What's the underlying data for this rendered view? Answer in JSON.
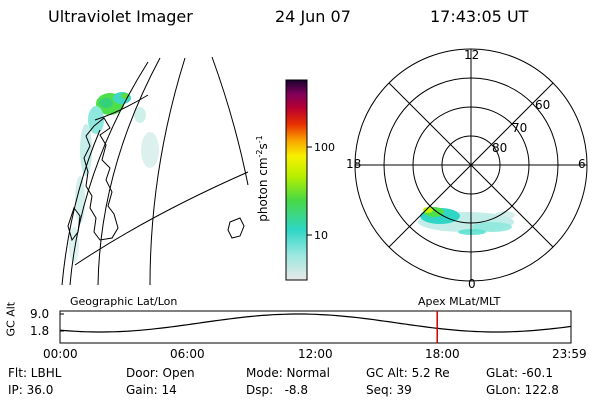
{
  "header": {
    "instrument": "Ultraviolet Imager",
    "date": "24 Jun 07",
    "time": "17:43:05 UT"
  },
  "colorbar": {
    "label": "photon cm",
    "label_sup1": "-2",
    "label_s": "s",
    "label_sup2": "-1",
    "ticks": [
      "100",
      "10"
    ],
    "scale": "log"
  },
  "polar_plot": {
    "mlt_labels": [
      "12",
      "18",
      "6",
      "0"
    ],
    "lat_labels": [
      "60",
      "70",
      "80"
    ]
  },
  "panels": {
    "left_caption": "Geographic Lat/Lon",
    "right_caption": "Apex MLat/MLT"
  },
  "timeline": {
    "ylabel": "GC Alt",
    "yticks": [
      "9.0",
      "1.8"
    ],
    "xticks": [
      "00:00",
      "06:00",
      "12:00",
      "18:00",
      "23:59"
    ],
    "marker_time": "17:43",
    "marker_color": "#d00000"
  },
  "info": {
    "filter": "Flt: LBHL",
    "door": "Door: Open",
    "mode": "Mode: Normal",
    "gc_alt": "GC Alt: 5.2 Re",
    "glat": "GLat: -60.1",
    "ip": "IP: 36.0",
    "gain": "Gain: 14",
    "dsp": "Dsp:   -8.8",
    "seq": "Seq: 39",
    "glon": "GLon: 122.8"
  }
}
